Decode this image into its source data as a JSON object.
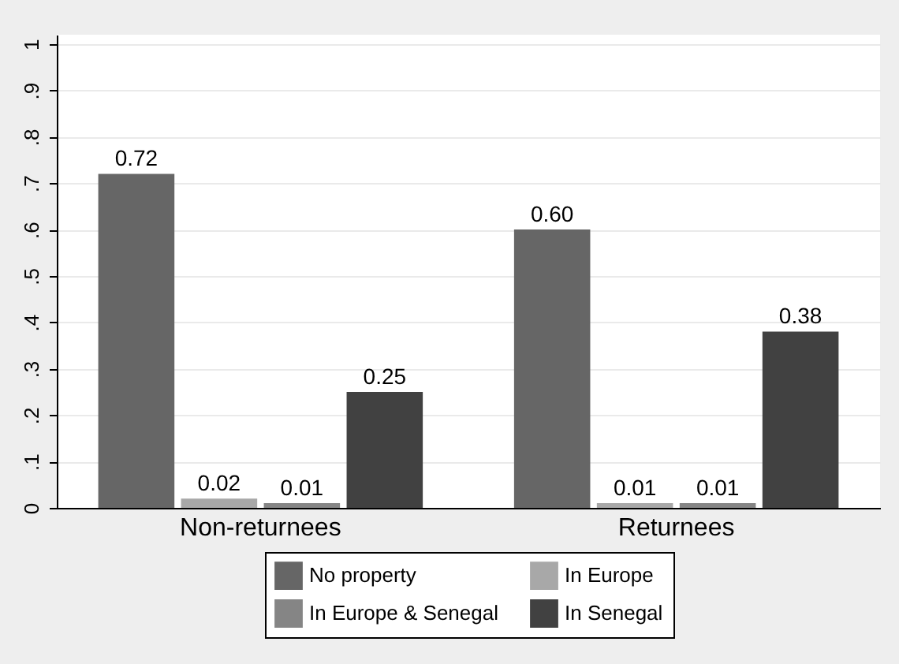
{
  "chart_data": {
    "type": "bar",
    "categories": [
      "Non-returnees",
      "Returnees"
    ],
    "series": [
      {
        "name": "No property",
        "color": "#666666",
        "values": [
          0.72,
          0.6
        ],
        "value_labels": [
          "0.72",
          "0.60"
        ]
      },
      {
        "name": "In Europe",
        "color": "#a8a8a8",
        "values": [
          0.02,
          0.01
        ],
        "value_labels": [
          "0.02",
          "0.01"
        ]
      },
      {
        "name": "In Europe & Senegal",
        "color": "#858585",
        "values": [
          0.01,
          0.01
        ],
        "value_labels": [
          "0.01",
          "0.01"
        ]
      },
      {
        "name": "In Senegal",
        "color": "#414141",
        "values": [
          0.25,
          0.38
        ],
        "value_labels": [
          "0.25",
          "0.38"
        ]
      }
    ],
    "ylim": [
      0,
      1.02
    ],
    "yticks": [
      0,
      {
        "value": 0.1,
        "label": ".1"
      },
      {
        "value": 0.2,
        "label": ".2"
      },
      {
        "value": 0.3,
        "label": ".3"
      },
      {
        "value": 0.4,
        "label": ".4"
      },
      {
        "value": 0.5,
        "label": ".5"
      },
      {
        "value": 0.6,
        "label": ".6"
      },
      {
        "value": 0.7,
        "label": ".7"
      },
      {
        "value": 0.8,
        "label": ".8"
      },
      {
        "value": 0.9,
        "label": ".9"
      },
      1
    ],
    "grid": "y",
    "legend": "bottom"
  }
}
